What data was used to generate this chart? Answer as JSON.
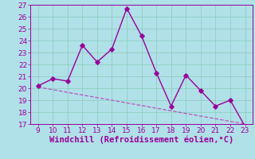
{
  "x": [
    9,
    10,
    11,
    12,
    13,
    14,
    15,
    16,
    17,
    18,
    19,
    20,
    21,
    22,
    23
  ],
  "y": [
    20.2,
    20.8,
    20.6,
    23.6,
    22.2,
    23.3,
    26.7,
    24.4,
    21.3,
    18.5,
    21.1,
    19.8,
    18.5,
    19.0,
    16.8
  ],
  "trend_x": [
    9,
    23
  ],
  "trend_y": [
    20.1,
    17.0
  ],
  "line_color": "#990099",
  "trend_color": "#bb55bb",
  "bg_color": "#b0e0e8",
  "grid_color": "#88ccbb",
  "xlabel": "Windchill (Refroidissement éolien,°C)",
  "xlim": [
    8.5,
    23.5
  ],
  "ylim": [
    17,
    27
  ],
  "xticks": [
    9,
    10,
    11,
    12,
    13,
    14,
    15,
    16,
    17,
    18,
    19,
    20,
    21,
    22,
    23
  ],
  "yticks": [
    17,
    18,
    19,
    20,
    21,
    22,
    23,
    24,
    25,
    26,
    27
  ],
  "marker": "D",
  "markersize": 2.8,
  "linewidth": 1.0,
  "xlabel_fontsize": 7.5,
  "tick_fontsize": 6.5,
  "tick_color": "#990099",
  "xlabel_color": "#990099",
  "label_color": "#990099"
}
